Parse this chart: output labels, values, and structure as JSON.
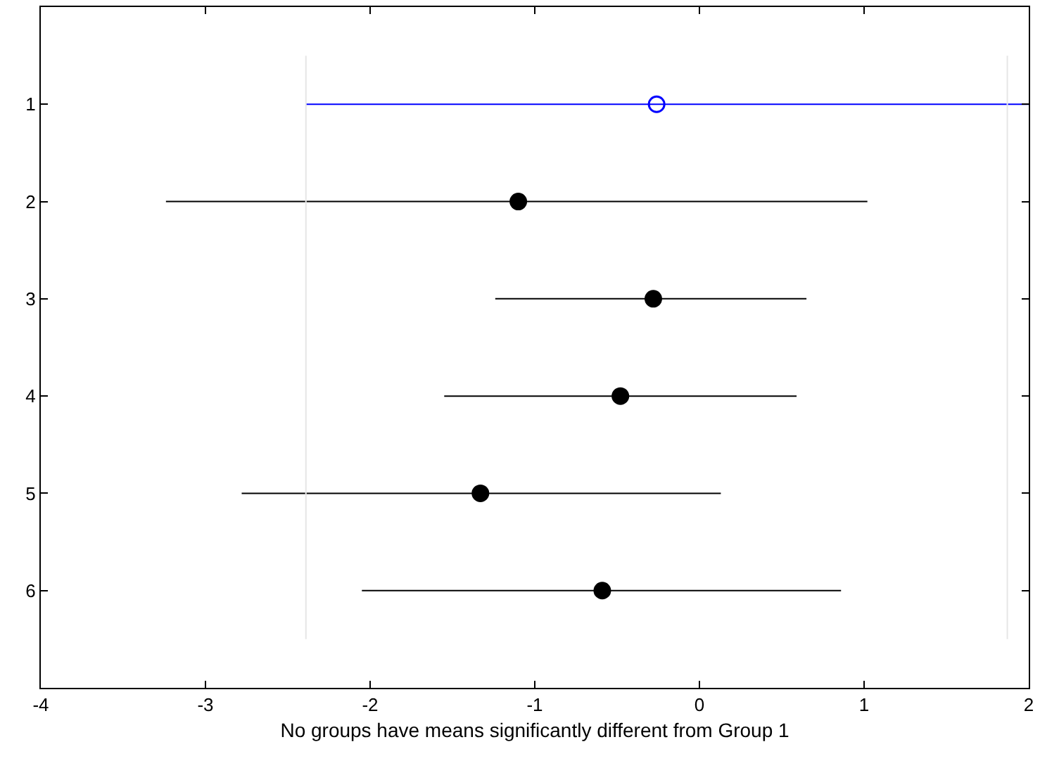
{
  "chart_data": {
    "type": "scatter",
    "orientation": "horizontal",
    "xlabel": "No groups have means significantly different from Group 1",
    "categories": [
      "1",
      "2",
      "3",
      "4",
      "5",
      "6"
    ],
    "series": [
      {
        "color": "#0000ff",
        "values": [
          -0.26,
          null,
          null,
          null,
          null,
          null
        ],
        "errors": [
          [
            -2.39,
            2.0
          ],
          null,
          null,
          null,
          null,
          null
        ]
      },
      {
        "color": "#000000",
        "values": [
          null,
          -1.1,
          -0.28,
          -0.48,
          -1.33,
          -0.59
        ],
        "errors": [
          null,
          [
            -3.24,
            1.02
          ],
          [
            -1.24,
            0.65
          ],
          [
            -1.55,
            0.59
          ],
          [
            -2.78,
            0.13
          ],
          [
            -2.05,
            0.86
          ]
        ]
      }
    ],
    "xlim": [
      -4,
      2
    ],
    "xticks": [
      -4,
      -3,
      -2,
      -1,
      0,
      1,
      2
    ],
    "ref_lines": [
      {
        "axis": "x",
        "value": -2.39,
        "color": "#e6e6e6"
      },
      {
        "axis": "x",
        "value": 1.87,
        "color": "#e6e6e6"
      }
    ],
    "marker": "circle"
  }
}
